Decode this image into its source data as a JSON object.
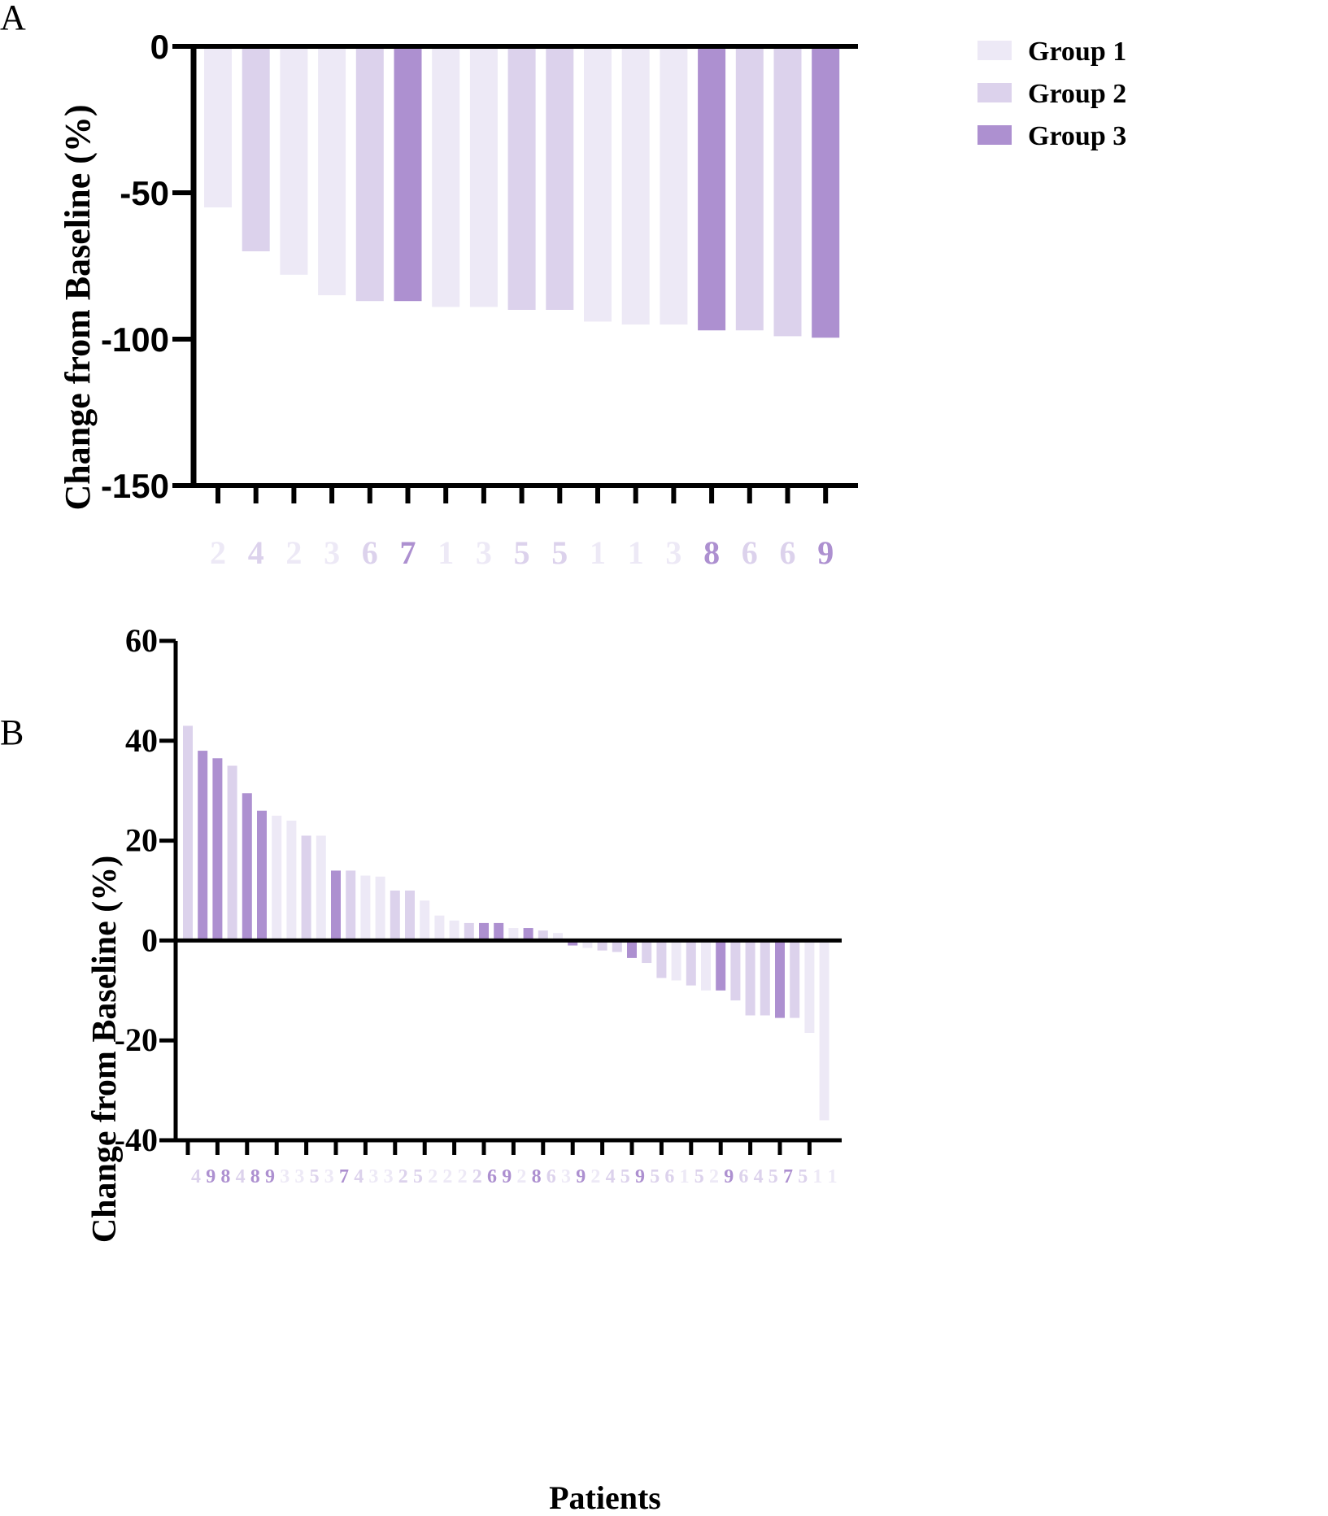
{
  "colors": {
    "group1": "#EDE9F6",
    "group2": "#DCD2EC",
    "group3": "#AD90D0",
    "axis": "#000000"
  },
  "legend": {
    "items": [
      {
        "label": "Group 1",
        "group": 1
      },
      {
        "label": "Group 2",
        "group": 2
      },
      {
        "label": "Group 3",
        "group": 3
      }
    ]
  },
  "shared": {
    "ylabel": "Change from Baseline (%)",
    "xlabel": "Patients"
  },
  "chart_data": [
    {
      "panel": "A",
      "type": "bar",
      "ylabel": "Change from Baseline (%)",
      "ylim": [
        -150,
        0
      ],
      "yticks": [
        0,
        -50,
        -100,
        -150
      ],
      "categories": [
        "2",
        "4",
        "2",
        "3",
        "6",
        "7",
        "1",
        "3",
        "5",
        "5",
        "1",
        "1",
        "3",
        "8",
        "6",
        "6",
        "9"
      ],
      "groups": [
        1,
        2,
        1,
        1,
        2,
        3,
        1,
        1,
        2,
        2,
        1,
        1,
        1,
        3,
        2,
        2,
        3
      ],
      "values": [
        -55,
        -70,
        -78,
        -85,
        -87,
        -87,
        -89,
        -89,
        -90,
        -90,
        -94,
        -95,
        -95,
        -97,
        -97,
        -99,
        -99.5
      ]
    },
    {
      "panel": "B",
      "type": "bar",
      "ylabel": "Change from Baseline (%)",
      "xlabel": "Patients",
      "ylim": [
        -40,
        60
      ],
      "yticks": [
        60,
        40,
        20,
        0,
        -20,
        -40
      ],
      "categories": [
        "4",
        "9",
        "8",
        "4",
        "8",
        "9",
        "3",
        "3",
        "5",
        "3",
        "7",
        "4",
        "3",
        "3",
        "2",
        "5",
        "2",
        "2",
        "2",
        "2",
        "6",
        "9",
        "2",
        "8",
        "6",
        "3",
        "9",
        "2",
        "4",
        "5",
        "9",
        "5",
        "6",
        "1",
        "5",
        "2",
        "9",
        "6",
        "4",
        "5",
        "7",
        "5",
        "1",
        "1"
      ],
      "groups": [
        2,
        3,
        3,
        2,
        3,
        3,
        1,
        1,
        2,
        1,
        3,
        2,
        1,
        1,
        2,
        2,
        1,
        1,
        1,
        2,
        3,
        3,
        1,
        3,
        2,
        1,
        3,
        1,
        2,
        2,
        3,
        2,
        2,
        1,
        2,
        1,
        3,
        2,
        2,
        2,
        3,
        2,
        1,
        1
      ],
      "values": [
        43,
        38,
        36.5,
        35,
        29.5,
        26,
        25,
        24,
        21,
        21,
        14,
        14,
        13,
        12.8,
        10,
        10,
        8,
        5,
        4,
        3.5,
        3.5,
        3.5,
        2.5,
        2.5,
        2,
        1.5,
        -1,
        -1.5,
        -2,
        -2.3,
        -3.5,
        -4.5,
        -7.5,
        -8,
        -9,
        -10,
        -10,
        -12,
        -15,
        -15,
        -15.5,
        -15.5,
        -18.5,
        -36
      ]
    }
  ]
}
